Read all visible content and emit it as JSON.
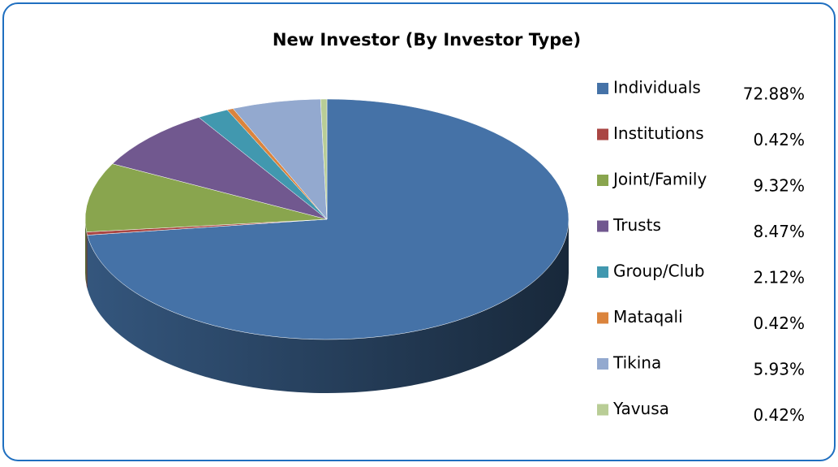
{
  "chart_data": {
    "type": "pie",
    "title": "New Investor (By Investor Type)",
    "categories": [
      "Individuals",
      "Institutions",
      "Joint/Family",
      "Trusts",
      "Group/Club",
      "Mataqali",
      "Tikina",
      "Yavusa"
    ],
    "values": [
      72.88,
      0.42,
      9.32,
      8.47,
      2.12,
      0.42,
      5.93,
      0.42
    ],
    "value_labels": [
      "72.88%",
      "0.42%",
      "9.32%",
      "8.47%",
      "2.12%",
      "0.42%",
      "5.93%",
      "0.42%"
    ],
    "colors": [
      "#4572A7",
      "#AA4643",
      "#89A54E",
      "#71588F",
      "#4198AF",
      "#DB843D",
      "#93A9CF",
      "#B9CD96"
    ],
    "legend": "right"
  }
}
